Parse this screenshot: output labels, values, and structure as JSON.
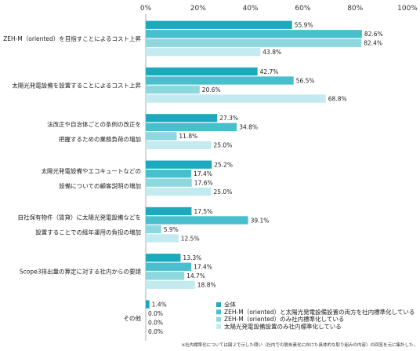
{
  "chart_data": {
    "type": "bar",
    "orientation": "horizontal",
    "categories": [
      [
        "ZEH-M（oriented）を目指すことによるコスト上昇"
      ],
      [
        "太陽光発電設備を設置することによるコスト上昇"
      ],
      [
        "法改正や自治体ごとの条例の改正を",
        "把握するための業務負荷の増加"
      ],
      [
        "太陽光発電設備やエコキュートなどの",
        "設備についての顧客説明の増加"
      ],
      [
        "自社保有物件（賃貸）に太陽光発電設備などを",
        "設置することでの経年運用の負担の増加"
      ],
      [
        "Scope3排出量の算定に対する社内からの要請"
      ],
      [
        "その他"
      ]
    ],
    "series": [
      {
        "name": "全体",
        "color": "#1aa9bd",
        "values": [
          55.9,
          42.7,
          27.3,
          25.2,
          17.5,
          13.3,
          1.4
        ]
      },
      {
        "name": "ZEH-M（oriented）と太陽光発電設備設置の両方を社内標準化している",
        "color": "#49bfcd",
        "values": [
          82.6,
          56.5,
          34.8,
          17.4,
          39.1,
          17.4,
          0.0
        ]
      },
      {
        "name": "ZEH-M（oriented）のみ社内標準化している",
        "color": "#8dd7df",
        "values": [
          82.4,
          20.6,
          11.8,
          17.6,
          5.9,
          14.7,
          0.0
        ]
      },
      {
        "name": "太陽光発電設備設置のみ社内標準化している",
        "color": "#c3ebef",
        "values": [
          43.8,
          68.8,
          25.0,
          25.0,
          12.5,
          18.8,
          0.0
        ]
      }
    ],
    "xlim": [
      0,
      100
    ],
    "xticks": [
      "0%",
      "20%",
      "40%",
      "60%",
      "80%",
      "100%"
    ],
    "value_suffix": "%",
    "legend_position": "bottom-right",
    "footnote": "※社内標準化については図２で示した問い（社内での脱炭素化に向けた具体的な取り組みの内容）の回答を元に集計した。"
  }
}
